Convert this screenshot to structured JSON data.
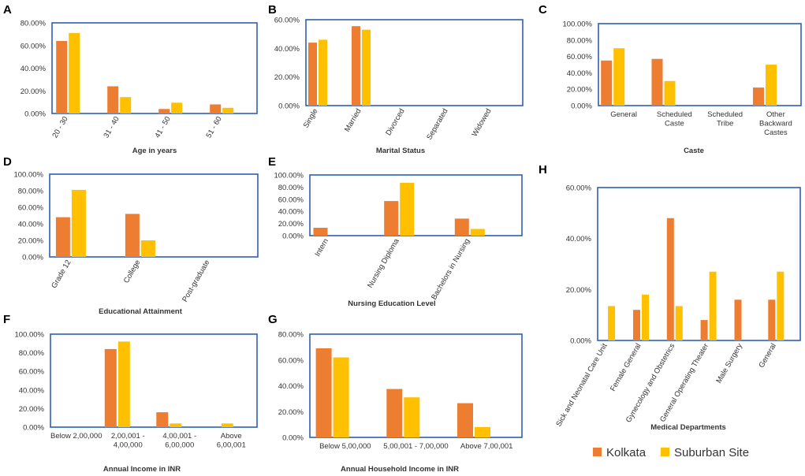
{
  "colors": {
    "kolkata": "#ed7d31",
    "suburban": "#ffc000",
    "frame": "#2f5fb3"
  },
  "legend": {
    "kolkata": "Kolkata",
    "suburban": "Suburban Site"
  },
  "chart_data": [
    {
      "letter": "A",
      "type": "bar",
      "title": "",
      "xlabel": "Age in years",
      "ylabel": "",
      "ylim": [
        0,
        0.8
      ],
      "yticks": [
        0,
        0.2,
        0.4,
        0.6,
        0.8
      ],
      "ytick_labels": [
        "0.00%",
        "20.00%",
        "40.00%",
        "60.00%",
        "80.00%"
      ],
      "categories": [
        "20 - 30",
        "31 - 40",
        "41 - 50",
        "51 - 60"
      ],
      "rotate_labels": true,
      "series": [
        {
          "name": "Kolkata",
          "values": [
            0.64,
            0.24,
            0.04,
            0.08
          ]
        },
        {
          "name": "Suburban Site",
          "values": [
            0.71,
            0.145,
            0.095,
            0.05
          ]
        }
      ]
    },
    {
      "letter": "B",
      "type": "bar",
      "title": "",
      "xlabel": "Marital Status",
      "ylabel": "",
      "ylim": [
        0,
        0.6
      ],
      "yticks": [
        0,
        0.2,
        0.4,
        0.6
      ],
      "ytick_labels": [
        "0.00%",
        "20.00%",
        "40.00%",
        "60.00%"
      ],
      "categories": [
        "Single",
        "Married",
        "Divorced",
        "Separated",
        "Widowed"
      ],
      "rotate_labels": true,
      "series": [
        {
          "name": "Kolkata",
          "values": [
            0.44,
            0.555,
            0,
            0,
            0
          ]
        },
        {
          "name": "Suburban Site",
          "values": [
            0.46,
            0.53,
            0,
            0,
            0
          ]
        }
      ]
    },
    {
      "letter": "C",
      "type": "bar",
      "title": "",
      "xlabel": "Caste",
      "ylabel": "",
      "ylim": [
        0,
        1.0
      ],
      "yticks": [
        0,
        0.2,
        0.4,
        0.6,
        0.8,
        1.0
      ],
      "ytick_labels": [
        "0.00%",
        "20.00%",
        "40.00%",
        "60.00%",
        "80.00%",
        "100.00%"
      ],
      "categories": [
        "General",
        "Scheduled Caste",
        "Scheduled Tribe",
        "Other Backward Castes"
      ],
      "category_lines": [
        [
          "General"
        ],
        [
          "Scheduled",
          "Caste"
        ],
        [
          "Scheduled",
          "Tribe"
        ],
        [
          "Other",
          "Backward",
          "Castes"
        ]
      ],
      "rotate_labels": false,
      "series": [
        {
          "name": "Kolkata",
          "values": [
            0.55,
            0.57,
            0,
            0.22
          ]
        },
        {
          "name": "Suburban Site",
          "values": [
            0.7,
            0.3,
            0,
            0.5
          ]
        }
      ]
    },
    {
      "letter": "D",
      "type": "bar",
      "title": "",
      "xlabel": "Educational Attainment",
      "ylabel": "",
      "ylim": [
        0,
        1.0
      ],
      "yticks": [
        0,
        0.2,
        0.4,
        0.6,
        0.8,
        1.0
      ],
      "ytick_labels": [
        "0.00%",
        "20.00%",
        "40.00%",
        "60.00%",
        "80.00%",
        "100.00%"
      ],
      "categories": [
        "Grade 12",
        "College",
        "Post-graduate"
      ],
      "rotate_labels": true,
      "series": [
        {
          "name": "Kolkata",
          "values": [
            0.48,
            0.52,
            0
          ]
        },
        {
          "name": "Suburban Site",
          "values": [
            0.81,
            0.2,
            0
          ]
        }
      ]
    },
    {
      "letter": "E",
      "type": "bar",
      "title": "",
      "xlabel": "Nursing Education Level",
      "ylabel": "",
      "ylim": [
        0,
        1.0
      ],
      "yticks": [
        0,
        0.2,
        0.4,
        0.6,
        0.8,
        1.0
      ],
      "ytick_labels": [
        "0.00%",
        "20.00%",
        "40.00%",
        "60.00%",
        "80.00%",
        "100.00%"
      ],
      "categories": [
        "Intern",
        "Nursing Diploma",
        "Bachelors in Nursing"
      ],
      "rotate_labels": true,
      "series": [
        {
          "name": "Kolkata",
          "values": [
            0.13,
            0.57,
            0.28
          ]
        },
        {
          "name": "Suburban Site",
          "values": [
            0,
            0.87,
            0.11
          ]
        }
      ]
    },
    {
      "letter": "F",
      "type": "bar",
      "title": "",
      "xlabel": "Annual Income in INR",
      "ylabel": "",
      "ylim": [
        0,
        1.0
      ],
      "yticks": [
        0,
        0.2,
        0.4,
        0.6,
        0.8,
        1.0
      ],
      "ytick_labels": [
        "0.00%",
        "20.00%",
        "40.00%",
        "60.00%",
        "80.00%",
        "100.00%"
      ],
      "categories": [
        "Below 2,00,000",
        "2,00,001 - 4,00,000",
        "4,00,001 - 6,00,000",
        "Above 6,00,001"
      ],
      "category_lines": [
        [
          "Below 2,00,000"
        ],
        [
          "2,00,001 -",
          "4,00,000"
        ],
        [
          "4,00,001 -",
          "6,00,000"
        ],
        [
          "Above",
          "6,00,001"
        ]
      ],
      "rotate_labels": false,
      "series": [
        {
          "name": "Kolkata",
          "values": [
            0,
            0.84,
            0.16,
            0
          ]
        },
        {
          "name": "Suburban Site",
          "values": [
            0,
            0.92,
            0.04,
            0.04
          ]
        }
      ]
    },
    {
      "letter": "G",
      "type": "bar",
      "title": "",
      "xlabel": "Annual Household Income in INR",
      "ylabel": "",
      "ylim": [
        0,
        0.8
      ],
      "yticks": [
        0,
        0.2,
        0.4,
        0.6,
        0.8
      ],
      "ytick_labels": [
        "0.00%",
        "20.00%",
        "40.00%",
        "60.00%",
        "80.00%"
      ],
      "categories": [
        "Below 5,00,000",
        "5,00,001 - 7,00,000",
        "Above 7,00,001"
      ],
      "rotate_labels": false,
      "series": [
        {
          "name": "Kolkata",
          "values": [
            0.69,
            0.375,
            0.265
          ]
        },
        {
          "name": "Suburban Site",
          "values": [
            0.62,
            0.31,
            0.08
          ]
        }
      ]
    },
    {
      "letter": "H",
      "type": "bar",
      "title": "",
      "xlabel": "Medical Departments",
      "ylabel": "",
      "ylim": [
        0,
        0.6
      ],
      "yticks": [
        0,
        0.2,
        0.4,
        0.6
      ],
      "ytick_labels": [
        "0.00%",
        "20.00%",
        "40.00%",
        "60.00%"
      ],
      "categories": [
        "Sick and Neonatal Care Unit",
        "Female General",
        "Gynecology and Obstetrics",
        "General Operating Theater",
        "Male Surgery",
        "General"
      ],
      "rotate_labels": true,
      "series": [
        {
          "name": "Kolkata",
          "values": [
            0,
            0.12,
            0.48,
            0.08,
            0.16,
            0.16
          ]
        },
        {
          "name": "Suburban Site",
          "values": [
            0.135,
            0.18,
            0.135,
            0.27,
            0,
            0.27
          ]
        }
      ]
    }
  ]
}
